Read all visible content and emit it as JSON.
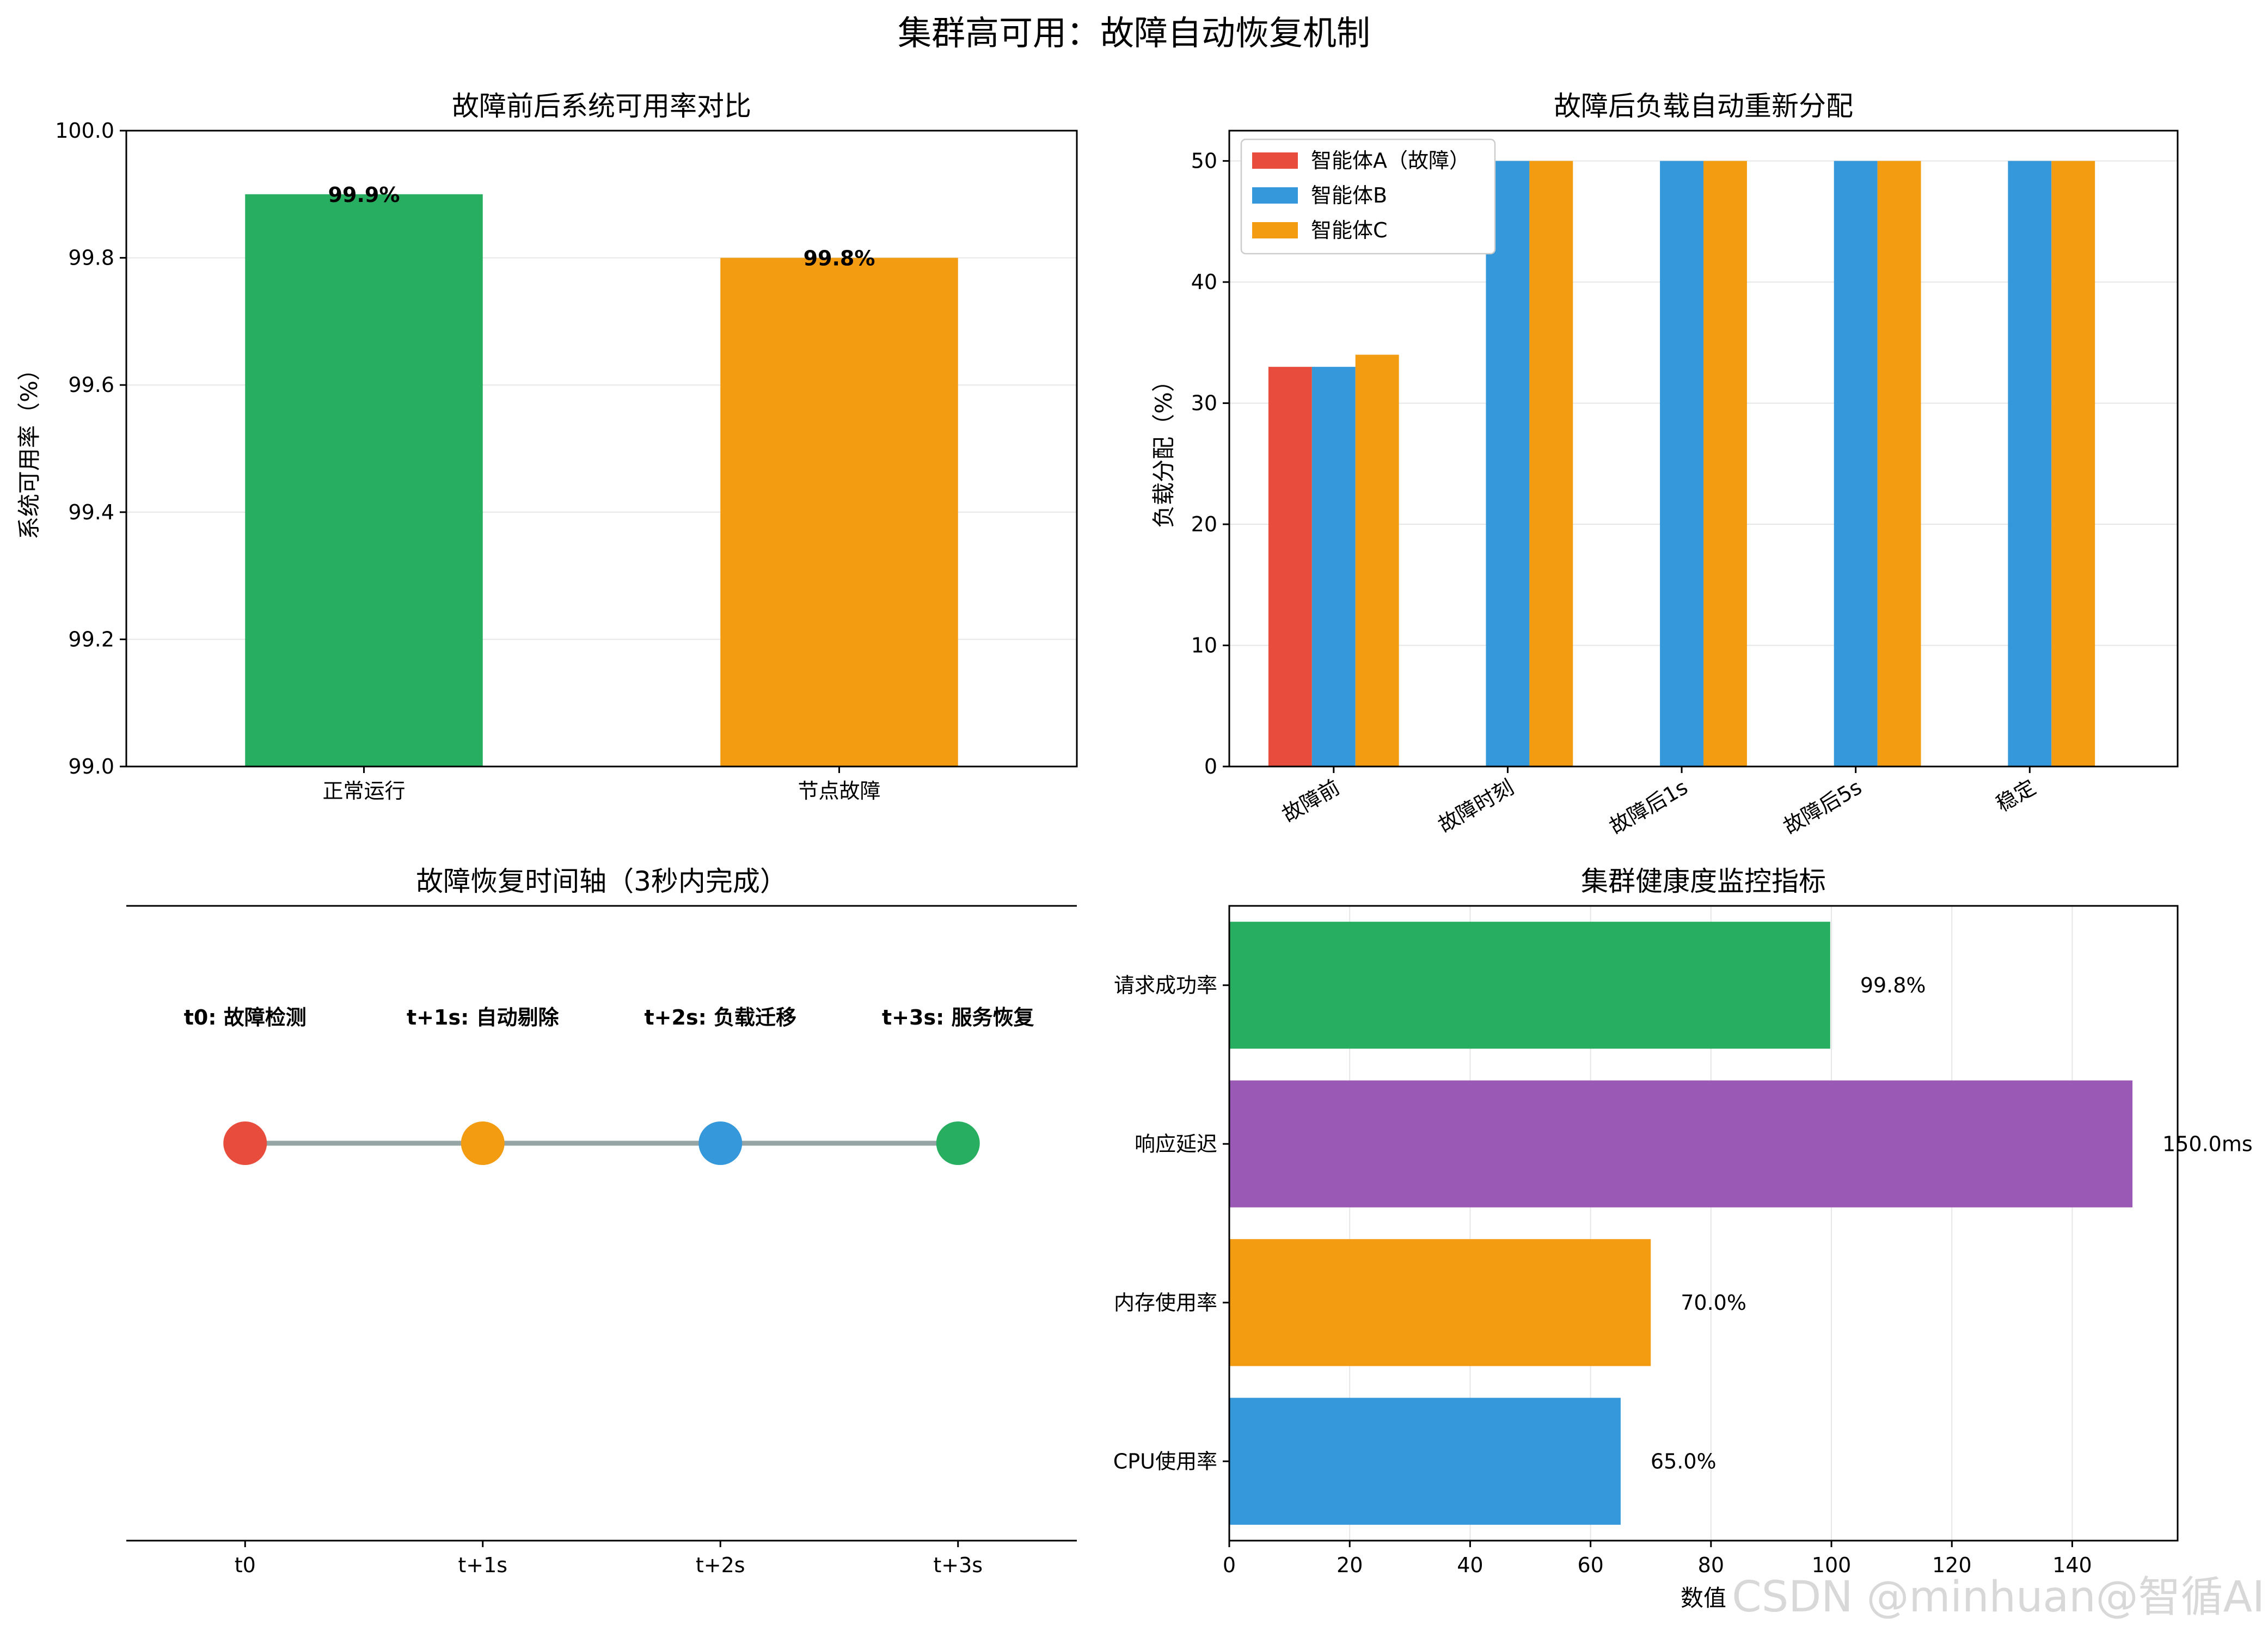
{
  "suptitle": "集群高可用：故障自动恢复机制",
  "watermark": "CSDN @minhuan@智循AI",
  "colors": {
    "red": "#e74c3c",
    "blue": "#3498db",
    "orange": "#f39c12",
    "green": "#27ae60",
    "purple": "#9b59b6",
    "gray": "#95a5a6"
  },
  "chart_data": [
    {
      "type": "bar",
      "title": "故障前后系统可用率对比",
      "categories": [
        "正常运行",
        "节点故障"
      ],
      "values": [
        99.9,
        99.8
      ],
      "labels": [
        "99.9%",
        "99.8%"
      ],
      "colors": [
        "#27ae60",
        "#f39c12"
      ],
      "ylabel": "系统可用率（%）",
      "xlabel": "",
      "ylim": [
        99.0,
        100.0
      ],
      "yticks": [
        99.0,
        99.2,
        99.4,
        99.6,
        99.8,
        100.0
      ],
      "ytick_labels": [
        "99.0",
        "99.2",
        "99.4",
        "99.6",
        "99.8",
        "100.0"
      ],
      "grid": "y"
    },
    {
      "type": "bar",
      "title": "故障后负载自动重新分配",
      "categories": [
        "故障前",
        "故障时刻",
        "故障后1s",
        "故障后5s",
        "稳定"
      ],
      "series": [
        {
          "name": "智能体A（故障）",
          "values": [
            33,
            0,
            0,
            0,
            0
          ],
          "color": "#e74c3c"
        },
        {
          "name": "智能体B",
          "values": [
            33,
            50,
            50,
            50,
            50
          ],
          "color": "#3498db"
        },
        {
          "name": "智能体C",
          "values": [
            34,
            50,
            50,
            50,
            50
          ],
          "color": "#f39c12"
        }
      ],
      "ylabel": "负载分配（%）",
      "xlabel": "",
      "ylim": [
        0,
        52.5
      ],
      "yticks": [
        0,
        10,
        20,
        30,
        40,
        50
      ],
      "ytick_labels": [
        "0",
        "10",
        "20",
        "30",
        "40",
        "50"
      ],
      "legend": "top-left",
      "grid": "y"
    },
    {
      "type": "timeline",
      "title": "故障恢复时间轴（3秒内完成）",
      "x": [
        0,
        1,
        2,
        3
      ],
      "xlim": [
        -0.5,
        3.5
      ],
      "tick_labels": [
        "t0",
        "t+1s",
        "t+2s",
        "t+3s"
      ],
      "events": [
        "t0: 故障检测",
        "t+1s: 自动剔除",
        "t+2s: 负载迁移",
        "t+3s: 服务恢复"
      ],
      "colors": [
        "#e74c3c",
        "#f39c12",
        "#3498db",
        "#27ae60"
      ]
    },
    {
      "type": "barh",
      "title": "集群健康度监控指标",
      "categories": [
        "请求成功率",
        "响应延迟",
        "内存使用率",
        "CPU使用率"
      ],
      "values": [
        99.8,
        150.0,
        70.0,
        65.0
      ],
      "labels": [
        "99.8%",
        "150.0ms",
        "70.0%",
        "65.0%"
      ],
      "colors": [
        "#27ae60",
        "#9b59b6",
        "#f39c12",
        "#3498db"
      ],
      "xlabel": "数值",
      "xlim": [
        0,
        157.5
      ],
      "xticks": [
        0,
        20,
        40,
        60,
        80,
        100,
        120,
        140
      ],
      "xtick_labels": [
        "0",
        "20",
        "40",
        "60",
        "80",
        "100",
        "120",
        "140"
      ],
      "grid": "x"
    }
  ]
}
